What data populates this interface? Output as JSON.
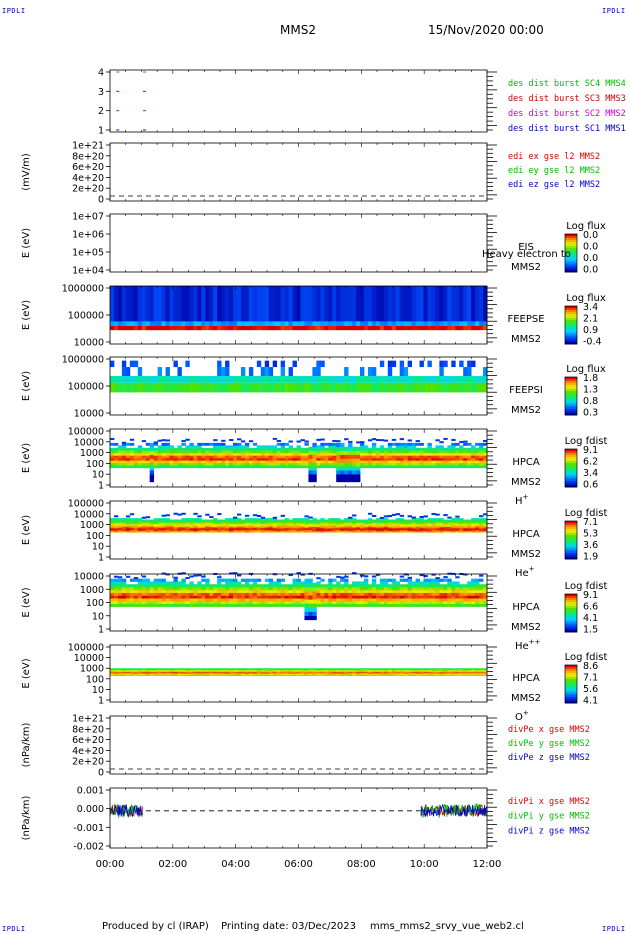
{
  "header": {
    "corner_label": "IPDLI",
    "spacecraft": "MMS2",
    "datetime": "15/Nov/2020 00:00"
  },
  "footer": {
    "produced_by": "Produced by cl (IRAP)",
    "printing_date": "Printing date: 03/Dec/2023",
    "filename": "mms_mms2_srvy_vue_web2.cl"
  },
  "colors": {
    "mms1": "#0000cc",
    "mms2": "#cc00cc",
    "mms3": "#cc0000",
    "mms4": "#00bb00",
    "x": "#dd0000",
    "y": "#00bb00",
    "z": "#0000cc"
  },
  "chart_data": [
    {
      "type": "scatter",
      "panel": "burst",
      "x_ticks": [
        "00:00",
        "02:00",
        "04:00",
        "06:00",
        "08:00",
        "10:00",
        "12:00"
      ],
      "xlim": [
        0,
        12
      ],
      "y_ticks": [
        "1",
        "2",
        "3",
        "4"
      ],
      "ylim": [
        0.5,
        4.5
      ],
      "series": [
        {
          "name": "des dist burst SC1 MMS1",
          "color": "#0000cc",
          "y": 1,
          "x": [
            0.2,
            1.05
          ]
        },
        {
          "name": "des dist burst SC2 MMS2",
          "color": "#cc00cc",
          "y": 2,
          "x": [
            0.2,
            1.05
          ]
        },
        {
          "name": "des dist burst SC3 MMS3",
          "color": "#cc0000",
          "y": 3,
          "x": [
            0.2,
            1.05
          ]
        },
        {
          "name": "des dist burst SC4 MMS4",
          "color": "#00bb00",
          "y": 4,
          "x": [
            0.2,
            1.05
          ]
        }
      ]
    },
    {
      "type": "line",
      "panel": "edi",
      "ylabel": "(mV/m)",
      "y_ticks": [
        "0",
        "2e+20",
        "4e+20",
        "6e+20",
        "8e+20",
        "1e+21"
      ],
      "ylim": [
        0,
        1.05
      ],
      "zero_line": true,
      "series": [
        {
          "name": "edi ex gse l2 MMS2",
          "color": "#dd0000"
        },
        {
          "name": "edi ey gse l2 MMS2",
          "color": "#00bb00"
        },
        {
          "name": "edi ez gse l2 MMS2",
          "color": "#0000cc"
        }
      ]
    },
    {
      "type": "heatmap",
      "panel": "eis",
      "ylabel": "E (eV)",
      "y_ticks": [
        "1e+04",
        "1e+05",
        "1e+06",
        "1e+07"
      ],
      "log_scale": true,
      "instrument": "EIS",
      "overlay_label": "Heavy electron to",
      "spacecraft": "MMS2",
      "colorbar_title": "Log flux",
      "colorbar_ticks": [
        "0.0",
        "0.0",
        "0.0",
        "0.0"
      ]
    },
    {
      "type": "heatmap",
      "panel": "feepse",
      "ylabel": "E (eV)",
      "y_ticks": [
        "10000",
        "100000",
        "1000000"
      ],
      "log_scale": true,
      "instrument": "FEEPSE",
      "spacecraft": "MMS2",
      "colorbar_title": "Log flux",
      "colorbar_ticks": [
        "3.4",
        "2.1",
        "0.9",
        "-0.4"
      ],
      "bands": [
        {
          "e_low": 30000,
          "e_high": 42000,
          "level": 1.0
        },
        {
          "e_low": 42000,
          "e_high": 60000,
          "level": 0.25
        },
        {
          "e_low": 60000,
          "e_high": 1000000,
          "level": 0.08
        }
      ]
    },
    {
      "type": "heatmap",
      "panel": "feepsi",
      "ylabel": "E (eV)",
      "y_ticks": [
        "10000",
        "100000",
        "1000000"
      ],
      "log_scale": true,
      "instrument": "FEEPSI",
      "spacecraft": "MMS2",
      "colorbar_title": "Log flux",
      "colorbar_ticks": [
        "1.8",
        "1.3",
        "0.8",
        "0.3"
      ],
      "bands": [
        {
          "e_low": 60000,
          "e_high": 130000,
          "level": 0.55
        },
        {
          "e_low": 130000,
          "e_high": 220000,
          "level": 0.4
        },
        {
          "e_low": 220000,
          "e_high": 450000,
          "level": 0.2
        },
        {
          "e_low": 450000,
          "e_high": 750000,
          "level": 0.12
        }
      ]
    },
    {
      "type": "heatmap",
      "panel": "hpca_hplus",
      "ylabel": "E (eV)",
      "y_ticks": [
        "1",
        "10",
        "100",
        "1000",
        "10000",
        "100000"
      ],
      "log_scale": true,
      "instrument": "HPCA",
      "spacecraft": "MMS2",
      "species": "H",
      "species_charge": "+",
      "colorbar_title": "Log fdist",
      "colorbar_ticks": [
        "9.1",
        "6.2",
        "3.4",
        "0.6"
      ],
      "dips_hours": [
        [
          1.3,
          1.45
        ],
        [
          6.3,
          6.55
        ],
        [
          6.9,
          7.0
        ],
        [
          7.25,
          7.9
        ]
      ]
    },
    {
      "type": "heatmap",
      "panel": "hpca_heplus",
      "ylabel": "E (eV)",
      "y_ticks": [
        "1",
        "10",
        "100",
        "1000",
        "10000",
        "100000"
      ],
      "log_scale": true,
      "instrument": "HPCA",
      "spacecraft": "MMS2",
      "species": "He",
      "species_charge": "+",
      "colorbar_title": "Log fdist",
      "colorbar_ticks": [
        "7.1",
        "5.3",
        "3.6",
        "1.9"
      ]
    },
    {
      "type": "heatmap",
      "panel": "hpca_heplusplus",
      "ylabel": "E (eV)",
      "y_ticks": [
        "1",
        "10",
        "100",
        "1000",
        "10000"
      ],
      "log_scale": true,
      "instrument": "HPCA",
      "spacecraft": "MMS2",
      "species": "He",
      "species_charge": "++",
      "colorbar_title": "Log fdist",
      "colorbar_ticks": [
        "9.1",
        "6.6",
        "4.1",
        "1.5"
      ]
    },
    {
      "type": "heatmap",
      "panel": "hpca_oplus",
      "ylabel": "E (eV)",
      "y_ticks": [
        "1",
        "10",
        "100",
        "1000",
        "10000",
        "100000"
      ],
      "log_scale": true,
      "instrument": "HPCA",
      "spacecraft": "MMS2",
      "species": "O",
      "species_charge": "+",
      "colorbar_title": "Log fdist",
      "colorbar_ticks": [
        "8.6",
        "7.1",
        "5.6",
        "4.1"
      ]
    },
    {
      "type": "line",
      "panel": "divpe",
      "ylabel": "(nPa/km)",
      "y_ticks": [
        "0",
        "2e+20",
        "4e+20",
        "6e+20",
        "8e+20",
        "1e+21"
      ],
      "ylim": [
        0,
        1.05
      ],
      "zero_line": true,
      "series": [
        {
          "name": "divPe x gse MMS2",
          "color": "#dd0000"
        },
        {
          "name": "divPe y gse MMS2",
          "color": "#00bb00"
        },
        {
          "name": "divPe z gse MMS2",
          "color": "#0000cc"
        }
      ]
    },
    {
      "type": "line",
      "panel": "divpi",
      "ylabel": "(nPa/km)",
      "y_ticks": [
        "0.001",
        "0.000",
        "-0.001",
        "-0.002"
      ],
      "ylim": [
        -0.0022,
        0.0013
      ],
      "zero_line": true,
      "x_ticks": [
        "00:00",
        "02:00",
        "04:00",
        "06:00",
        "08:00",
        "10:00",
        "12:00"
      ],
      "data_windows_hours": [
        [
          0.0,
          1.05
        ],
        [
          9.9,
          12.0
        ]
      ],
      "series": [
        {
          "name": "divPi x gse MMS2",
          "color": "#dd0000"
        },
        {
          "name": "divPi y gse MMS2",
          "color": "#00bb00"
        },
        {
          "name": "divPi z gse MMS2",
          "color": "#0000cc"
        }
      ]
    }
  ]
}
